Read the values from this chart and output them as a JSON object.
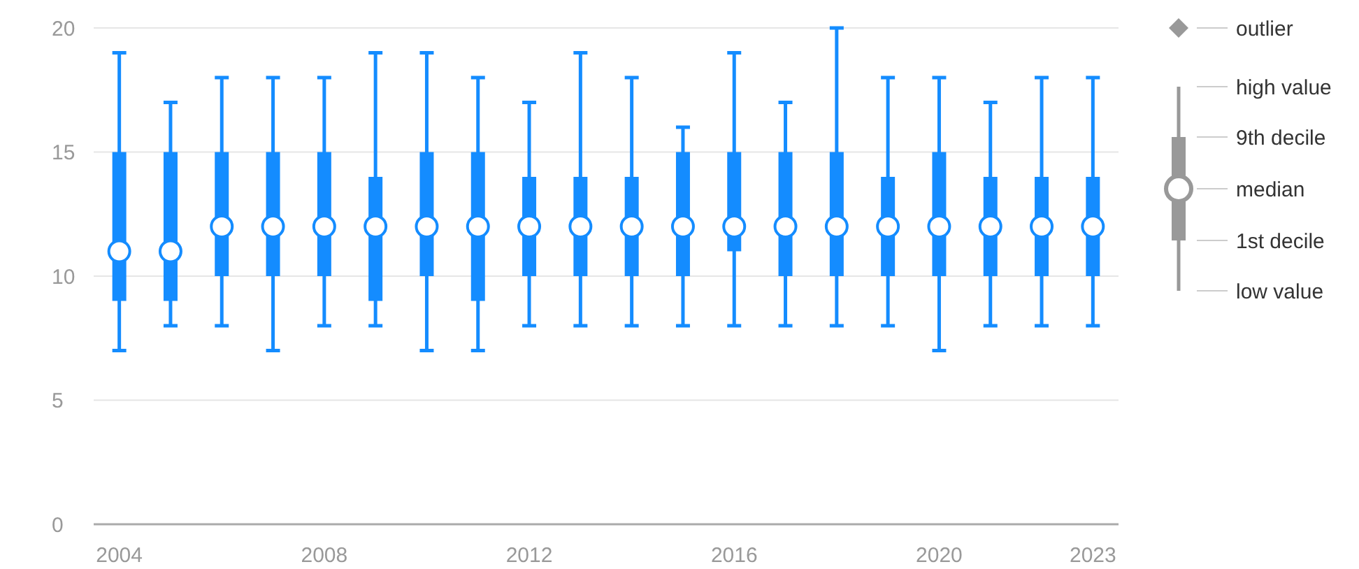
{
  "chart_data": {
    "type": "box",
    "categories": [
      "2004",
      null,
      null,
      null,
      "2008",
      null,
      null,
      null,
      "2012",
      null,
      null,
      null,
      "2016",
      null,
      null,
      null,
      "2020",
      null,
      null,
      "2023"
    ],
    "color": "#148cff",
    "boxes": [
      {
        "low": 7,
        "q1": 9,
        "median": 11,
        "q3": 15,
        "high": 19
      },
      {
        "low": 8,
        "q1": 9,
        "median": 11,
        "q3": 15,
        "high": 17
      },
      {
        "low": 8,
        "q1": 10,
        "median": 12,
        "q3": 15,
        "high": 18
      },
      {
        "low": 7,
        "q1": 10,
        "median": 12,
        "q3": 15,
        "high": 18
      },
      {
        "low": 8,
        "q1": 10,
        "median": 12,
        "q3": 15,
        "high": 18
      },
      {
        "low": 8,
        "q1": 9,
        "median": 12,
        "q3": 14,
        "high": 19
      },
      {
        "low": 7,
        "q1": 10,
        "median": 12,
        "q3": 15,
        "high": 19
      },
      {
        "low": 7,
        "q1": 9,
        "median": 12,
        "q3": 15,
        "high": 18
      },
      {
        "low": 8,
        "q1": 10,
        "median": 12,
        "q3": 14,
        "high": 17
      },
      {
        "low": 8,
        "q1": 10,
        "median": 12,
        "q3": 14,
        "high": 19
      },
      {
        "low": 8,
        "q1": 10,
        "median": 12,
        "q3": 14,
        "high": 18
      },
      {
        "low": 8,
        "q1": 10,
        "median": 12,
        "q3": 15,
        "high": 16
      },
      {
        "low": 8,
        "q1": 11,
        "median": 12,
        "q3": 15,
        "high": 19
      },
      {
        "low": 8,
        "q1": 10,
        "median": 12,
        "q3": 15,
        "high": 17
      },
      {
        "low": 8,
        "q1": 10,
        "median": 12,
        "q3": 15,
        "high": 20
      },
      {
        "low": 8,
        "q1": 10,
        "median": 12,
        "q3": 14,
        "high": 18
      },
      {
        "low": 7,
        "q1": 10,
        "median": 12,
        "q3": 15,
        "high": 18
      },
      {
        "low": 8,
        "q1": 10,
        "median": 12,
        "q3": 14,
        "high": 17
      },
      {
        "low": 8,
        "q1": 10,
        "median": 12,
        "q3": 14,
        "high": 18
      },
      {
        "low": 8,
        "q1": 10,
        "median": 12,
        "q3": 14,
        "high": 18
      }
    ],
    "ylim": [
      0,
      20
    ],
    "yticks": [
      0,
      5,
      10,
      15,
      20
    ],
    "grid": "y",
    "annotations": [
      "outlier",
      "high value",
      "9th decile",
      "median",
      "1st decile",
      "low value"
    ]
  }
}
